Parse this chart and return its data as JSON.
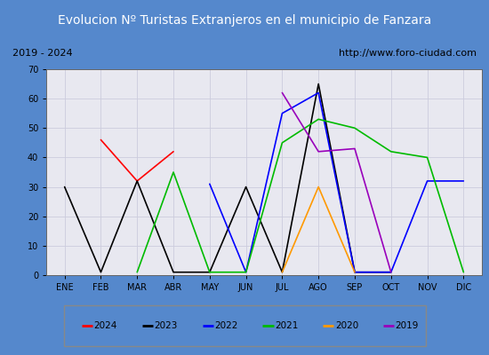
{
  "title": "Evolucion Nº Turistas Extranjeros en el municipio de Fanzara",
  "subtitle_left": "2019 - 2024",
  "subtitle_right": "http://www.foro-ciudad.com",
  "months": [
    "ENE",
    "FEB",
    "MAR",
    "ABR",
    "MAY",
    "JUN",
    "JUL",
    "AGO",
    "SEP",
    "OCT",
    "NOV",
    "DIC"
  ],
  "ylim": [
    0,
    70
  ],
  "yticks": [
    0,
    10,
    20,
    30,
    40,
    50,
    60,
    70
  ],
  "series": {
    "2024": {
      "color": "#ff0000",
      "data": [
        null,
        46,
        32,
        42,
        null,
        null,
        null,
        null,
        null,
        null,
        null,
        null
      ]
    },
    "2023": {
      "color": "#000000",
      "data": [
        30,
        1,
        32,
        1,
        1,
        30,
        1,
        65,
        1,
        1,
        null,
        null
      ]
    },
    "2022": {
      "color": "#0000ff",
      "data": [
        null,
        null,
        null,
        null,
        31,
        1,
        55,
        62,
        1,
        1,
        32,
        32
      ]
    },
    "2021": {
      "color": "#00bb00",
      "data": [
        null,
        null,
        1,
        35,
        1,
        1,
        45,
        53,
        50,
        42,
        40,
        1
      ]
    },
    "2020": {
      "color": "#ff9900",
      "data": [
        null,
        null,
        null,
        null,
        null,
        null,
        1,
        30,
        1,
        null,
        null,
        null
      ]
    },
    "2019": {
      "color": "#9900bb",
      "data": [
        null,
        null,
        null,
        null,
        null,
        null,
        62,
        42,
        43,
        1,
        null,
        null
      ]
    }
  },
  "legend_order": [
    "2024",
    "2023",
    "2022",
    "2021",
    "2020",
    "2019"
  ],
  "frame_color": "#5588cc",
  "fig_facecolor": "#5588cc",
  "title_facecolor": "#5b8dd9",
  "title_text_color": "#ffffff",
  "header_facecolor": "#ffffff",
  "header_border_color": "#888888",
  "plot_facecolor": "#e8e8f0",
  "grid_color": "#ccccdd",
  "legend_facecolor": "#f0f0f0",
  "legend_border_color": "#888888"
}
